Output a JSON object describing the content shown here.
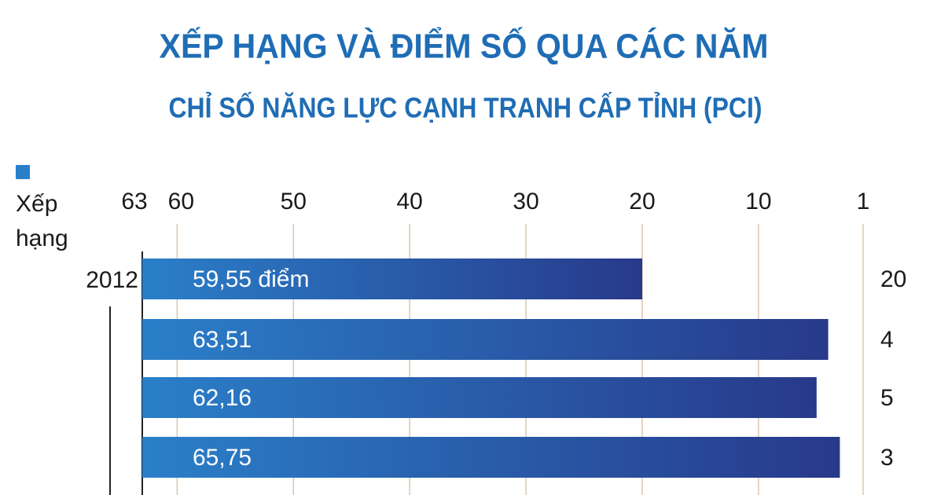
{
  "chart_data": {
    "type": "bar",
    "orientation": "horizontal",
    "title": "XẾP HẠNG VÀ ĐIỂM SỐ QUA CÁC NĂM",
    "subtitle": "CHỈ SỐ NĂNG LỰC CẠNH TRANH CẤP TỈNH (PCI)",
    "categories": [
      "2012",
      null,
      null,
      null
    ],
    "series": [
      {
        "name": "Xếp hạng",
        "color": "#2a7fc9",
        "values": [
          20,
          4,
          5,
          3
        ]
      }
    ],
    "score_labels": [
      "59,55 điểm",
      "63,51",
      "62,16",
      "65,75"
    ],
    "xlim": [
      63,
      1
    ],
    "xticks": [
      63,
      60,
      50,
      40,
      30,
      20,
      10,
      1
    ],
    "grid": true
  }
}
